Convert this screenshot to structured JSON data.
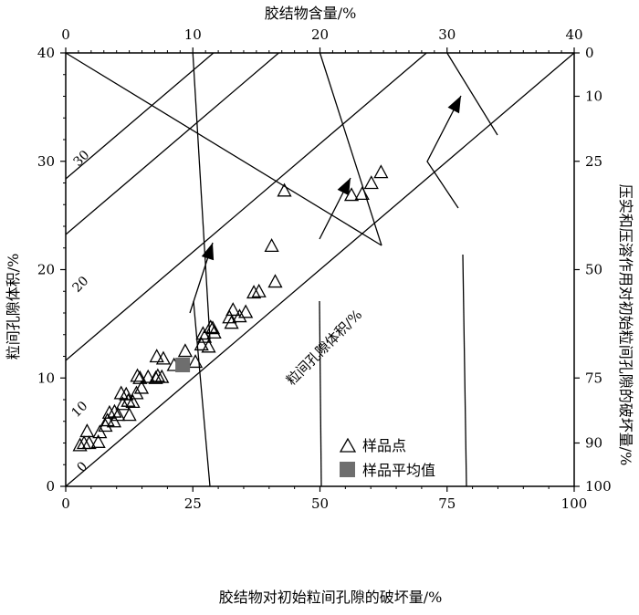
{
  "chart_data": {
    "type": "scatter",
    "axes": {
      "bottom": {
        "label": "胶结物对初始粒间孔隙的破坏量/%",
        "range": [
          0,
          100
        ],
        "ticks": [
          "0",
          "25",
          "50",
          "75",
          "100"
        ]
      },
      "left": {
        "label": "粒间孔隙体积/%",
        "range": [
          0,
          40
        ],
        "ticks": [
          "0",
          "10",
          "20",
          "30",
          "40"
        ]
      },
      "top": {
        "label": "胶结物含量/%",
        "range": [
          0,
          40
        ],
        "ticks": [
          "0",
          "10",
          "20",
          "30",
          "40"
        ]
      },
      "right": {
        "label": "压实和压溶作用对初始粒间孔隙的破坏量/%",
        "range": [
          0,
          100
        ],
        "ticks": [
          "0",
          "10",
          "25",
          "50",
          "75",
          "90",
          "100"
        ]
      }
    },
    "contour_labels": [
      "0",
      "10",
      "20",
      "30"
    ],
    "diagonal_label": "粒间孔隙体积/%",
    "legend": {
      "position": "bottom-right",
      "items": [
        {
          "label": "样品点",
          "marker": "open-triangle"
        },
        {
          "label": "样品平均值",
          "marker": "filled-square",
          "color": "#6e6e6e"
        }
      ]
    },
    "series": [
      {
        "name": "样品点",
        "marker": "open-triangle",
        "x": [
          2.8,
          3.6,
          4.6,
          6.4,
          6.7,
          4.2,
          7.8,
          8.2,
          9.5,
          10.3,
          12.5,
          8.6,
          9.6,
          11.2,
          12.3,
          13.2,
          10.9,
          11.9,
          13.9,
          14.9,
          14.1,
          16.2,
          14.6,
          17.7,
          18.9,
          18.1,
          17.9,
          19.2,
          21.3,
          23.5,
          25.5,
          26.7,
          27.3,
          28.1,
          27.0,
          28.5,
          28.9,
          29.2,
          32.6,
          32.2,
          32.9,
          34.2,
          35.4,
          37.0,
          38.0,
          41.2,
          40.5,
          43.0,
          56.2,
          58.3,
          60.1,
          62.0
        ],
        "y": [
          3.8,
          4.0,
          4.0,
          4.1,
          5.0,
          5.1,
          5.6,
          6.1,
          6.0,
          6.6,
          6.6,
          6.8,
          6.9,
          7.6,
          7.9,
          7.8,
          8.6,
          8.5,
          8.6,
          9.1,
          10.2,
          10.1,
          10.0,
          10.0,
          10.1,
          10.2,
          12.0,
          11.8,
          11.2,
          12.5,
          11.5,
          13.1,
          13.8,
          12.9,
          14.1,
          14.7,
          14.6,
          14.2,
          15.1,
          15.6,
          16.3,
          15.7,
          16.1,
          17.9,
          18.0,
          18.9,
          22.2,
          27.3,
          26.9,
          27.0,
          28.0,
          29.0
        ]
      },
      {
        "name": "样品平均值",
        "marker": "filled-square",
        "x": [
          23.0
        ],
        "y": [
          11.2
        ]
      }
    ],
    "grid": false
  }
}
